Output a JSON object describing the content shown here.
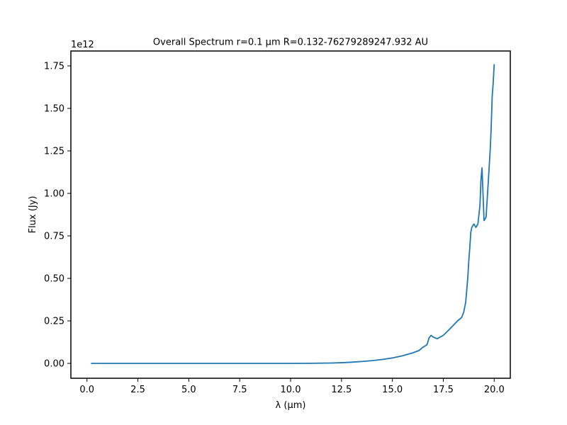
{
  "chart_data": {
    "type": "line",
    "title": "Overall Spectrum r=0.1 μm R=0.132-76279289247.932 AU",
    "xlabel": "λ (μm)",
    "ylabel": "Flux (Jy)",
    "y_offset_label": "1e12",
    "xlim": [
      -0.79,
      20.79
    ],
    "ylim": [
      -0.0875,
      1.8375
    ],
    "x_ticks": [
      0.0,
      2.5,
      5.0,
      7.5,
      10.0,
      12.5,
      15.0,
      17.5,
      20.0
    ],
    "x_tick_labels": [
      "0.0",
      "2.5",
      "5.0",
      "7.5",
      "10.0",
      "12.5",
      "15.0",
      "17.5",
      "20.0"
    ],
    "y_ticks": [
      0.0,
      0.25,
      0.5,
      0.75,
      1.0,
      1.25,
      1.5,
      1.75
    ],
    "y_tick_labels": [
      "0.00",
      "0.25",
      "0.50",
      "0.75",
      "1.00",
      "1.25",
      "1.50",
      "1.75"
    ],
    "grid": false,
    "series": [
      {
        "color": "#1f77b4",
        "x": [
          0.2,
          2.0,
          4.0,
          6.0,
          8.0,
          10.0,
          11.0,
          12.0,
          12.5,
          13.0,
          13.5,
          14.0,
          14.5,
          15.0,
          15.5,
          16.0,
          16.3,
          16.5,
          16.7,
          16.8,
          16.9,
          17.0,
          17.2,
          17.5,
          17.8,
          18.0,
          18.2,
          18.4,
          18.5,
          18.6,
          18.7,
          18.75,
          18.8,
          18.85,
          18.9,
          19.0,
          19.1,
          19.2,
          19.3,
          19.35,
          19.4,
          19.45,
          19.5,
          19.6,
          19.7,
          19.8,
          19.85,
          19.9,
          19.95,
          20.0
        ],
        "y": [
          0.0,
          0.0,
          0.0,
          0.0,
          0.0,
          0.0,
          0.0005,
          0.002,
          0.004,
          0.007,
          0.011,
          0.016,
          0.023,
          0.032,
          0.045,
          0.062,
          0.075,
          0.095,
          0.11,
          0.15,
          0.165,
          0.155,
          0.145,
          0.165,
          0.2,
          0.225,
          0.25,
          0.27,
          0.3,
          0.36,
          0.5,
          0.6,
          0.68,
          0.77,
          0.8,
          0.82,
          0.8,
          0.82,
          0.93,
          1.08,
          1.15,
          1.0,
          0.84,
          0.86,
          1.05,
          1.25,
          1.38,
          1.57,
          1.65,
          1.76
        ]
      }
    ]
  }
}
